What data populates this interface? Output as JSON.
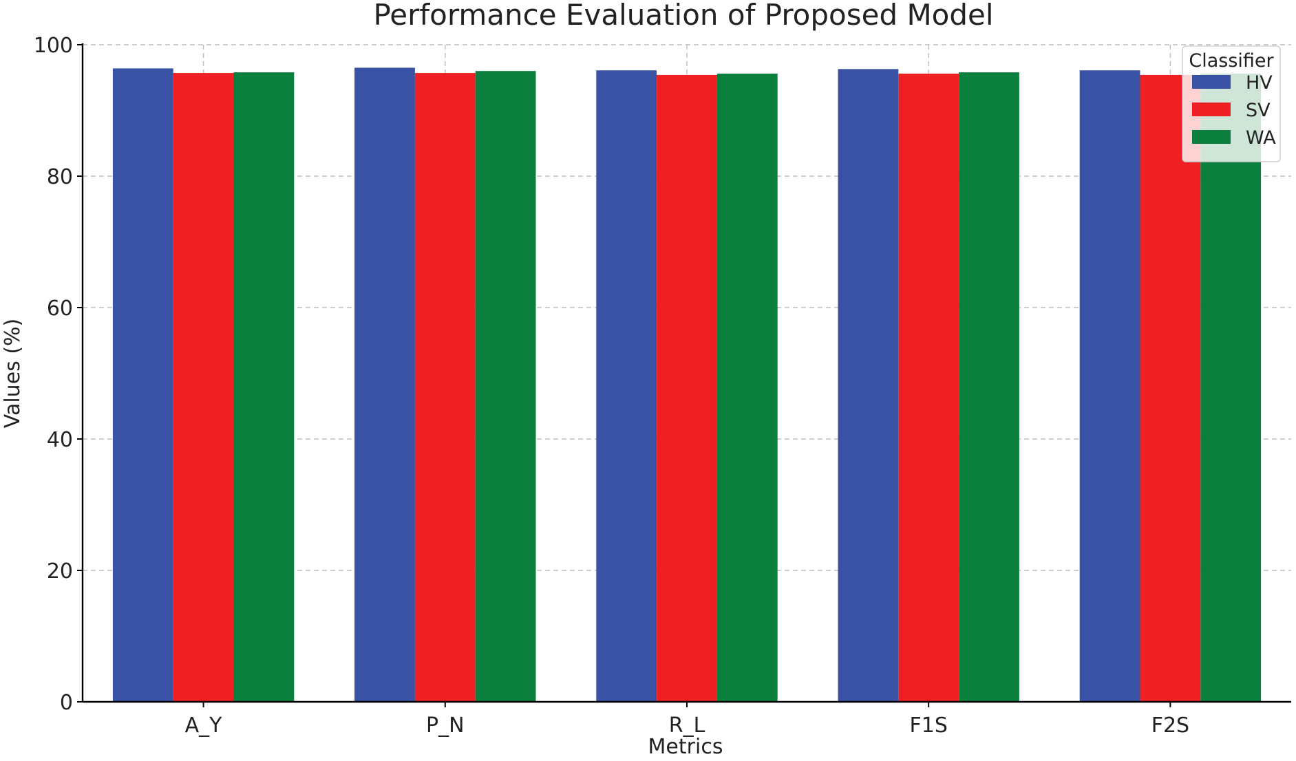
{
  "chart_data": {
    "type": "bar",
    "title": "Performance Evaluation of Proposed Model",
    "xlabel": "Metrics",
    "ylabel": "Values (%)",
    "categories": [
      "A_Y",
      "P_N",
      "R_L",
      "F1S",
      "F2S"
    ],
    "ylim": [
      0,
      100
    ],
    "yticks": [
      0,
      20,
      40,
      60,
      80,
      100
    ],
    "grid": true,
    "legend": {
      "title": "Classifier",
      "placement": "top-right"
    },
    "series": [
      {
        "name": "HV",
        "color": "#3a52a3",
        "values": [
          96.4,
          96.5,
          96.1,
          96.3,
          96.1
        ]
      },
      {
        "name": "SV",
        "color": "#ee2024",
        "values": [
          95.7,
          95.7,
          95.4,
          95.6,
          95.4
        ]
      },
      {
        "name": "WA",
        "color": "#0b7f3e",
        "values": [
          95.8,
          96.0,
          95.6,
          95.8,
          95.6
        ]
      }
    ]
  }
}
